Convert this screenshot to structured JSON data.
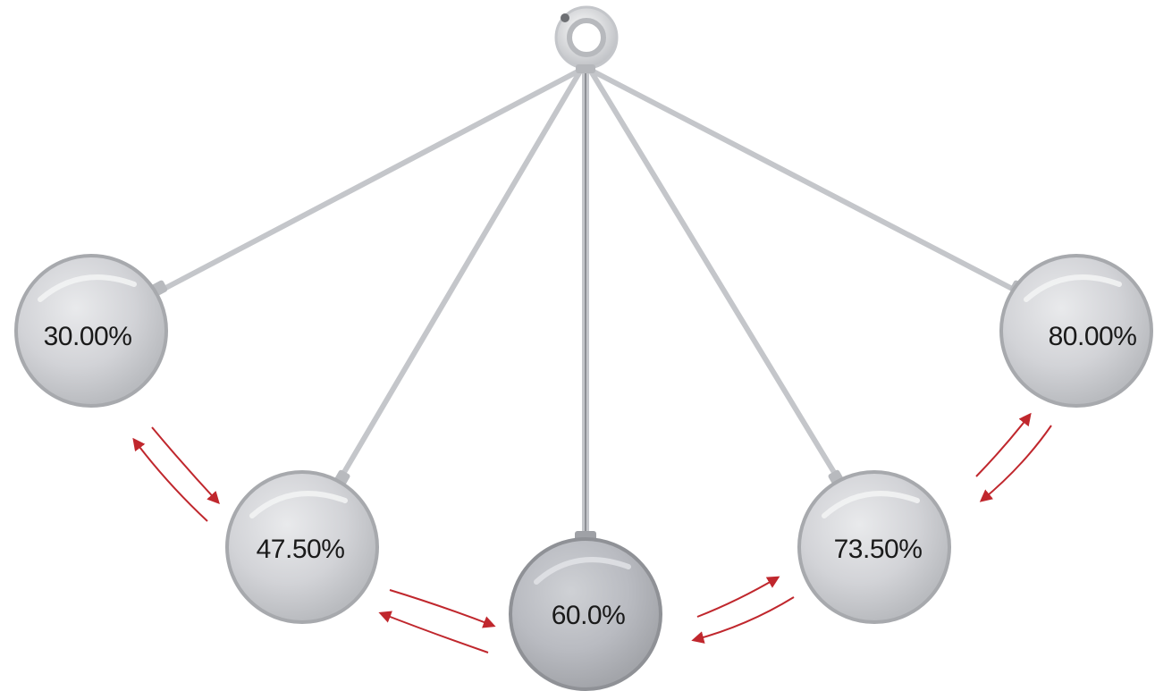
{
  "balls": [
    {
      "label": "30.00%",
      "role": "left-extreme"
    },
    {
      "label": "47.50%",
      "role": "left-middle"
    },
    {
      "label": "60.0%",
      "role": "center"
    },
    {
      "label": "73.50%",
      "role": "right-middle"
    },
    {
      "label": "80.00%",
      "role": "right-extreme"
    }
  ],
  "colors": {
    "rod": "#c4c6ca",
    "ball_light": "#d3d4d8",
    "ball_center": "#b8bac0",
    "ball_edge": "#a4a6ab",
    "arrow": "#c0272d"
  }
}
